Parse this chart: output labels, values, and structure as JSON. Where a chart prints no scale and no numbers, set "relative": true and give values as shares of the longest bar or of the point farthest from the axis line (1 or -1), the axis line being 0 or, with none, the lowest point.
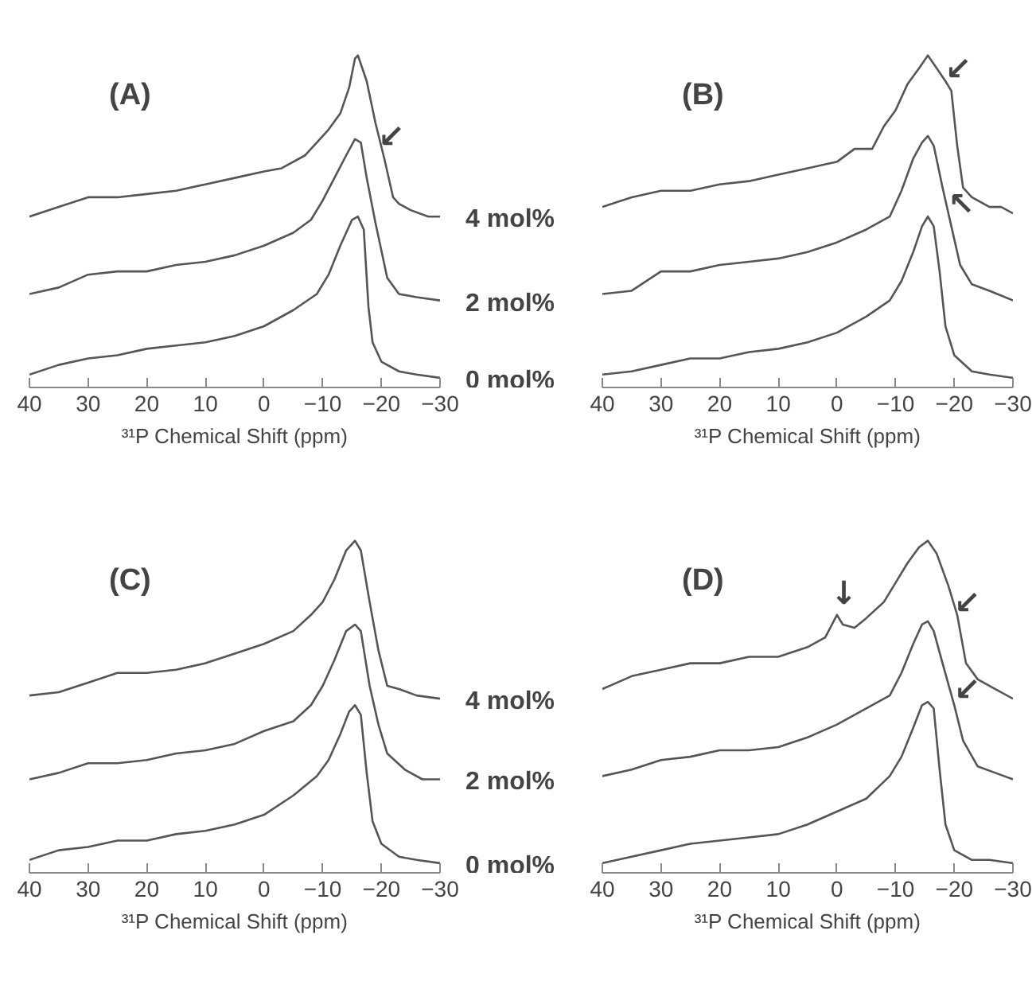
{
  "chart_data": [
    {
      "type": "line",
      "title": "(A)",
      "xlabel": "³¹P Chemical Shift (ppm)",
      "relative": true,
      "xlim": [
        40,
        -30
      ],
      "xticks": [
        40,
        30,
        20,
        10,
        0,
        -10,
        -20,
        -30
      ],
      "grid": false,
      "annotations": [
        {
          "text": "↙",
          "x": -20.5,
          "y": 0.68
        }
      ],
      "series": [
        {
          "name": "4 mol%",
          "color": "#555555",
          "x": [
            40,
            35,
            30,
            25,
            20,
            15,
            10,
            5,
            0,
            -3,
            -7,
            -9,
            -11,
            -13,
            -14.5,
            -15.5,
            -16,
            -17.5,
            -19,
            -20.5,
            -22,
            -23,
            -25,
            -28,
            -30
          ],
          "values": [
            0.5,
            0.53,
            0.56,
            0.56,
            0.57,
            0.58,
            0.6,
            0.62,
            0.64,
            0.65,
            0.69,
            0.73,
            0.77,
            0.82,
            0.9,
            0.99,
            1.0,
            0.92,
            0.79,
            0.68,
            0.56,
            0.54,
            0.52,
            0.5,
            0.5
          ]
        },
        {
          "name": "2 mol%",
          "color": "#555555",
          "x": [
            40,
            35,
            30,
            25,
            20,
            15,
            10,
            5,
            0,
            -5,
            -8,
            -10,
            -12,
            -14,
            -15.5,
            -16.5,
            -17.5,
            -19,
            -21,
            -23,
            -26,
            -30
          ],
          "values": [
            0.26,
            0.28,
            0.32,
            0.33,
            0.33,
            0.35,
            0.36,
            0.38,
            0.41,
            0.45,
            0.49,
            0.55,
            0.62,
            0.69,
            0.74,
            0.73,
            0.62,
            0.48,
            0.31,
            0.26,
            0.25,
            0.24
          ]
        },
        {
          "name": "0 mol%",
          "color": "#555555",
          "x": [
            40,
            35,
            30,
            25,
            20,
            15,
            10,
            5,
            0,
            -5,
            -9,
            -11,
            -13,
            -15,
            -16,
            -17,
            -17.8,
            -18.5,
            -20,
            -23,
            -26,
            -30
          ],
          "values": [
            0.01,
            0.04,
            0.06,
            0.07,
            0.09,
            0.1,
            0.11,
            0.13,
            0.16,
            0.21,
            0.26,
            0.32,
            0.41,
            0.49,
            0.5,
            0.46,
            0.22,
            0.11,
            0.05,
            0.02,
            0.01,
            0
          ]
        }
      ]
    },
    {
      "type": "line",
      "title": "(B)",
      "xlabel": "³¹P Chemical Shift (ppm)",
      "relative": true,
      "xlim": [
        40,
        -30
      ],
      "xticks": [
        40,
        30,
        20,
        10,
        0,
        -10,
        -20,
        -30
      ],
      "grid": false,
      "annotations": [
        {
          "text": "↙",
          "x": -19.5,
          "y": 0.89
        },
        {
          "text": "↖",
          "x": -20,
          "y": 0.47
        }
      ],
      "series": [
        {
          "color": "#555555",
          "x": [
            40,
            35,
            30,
            25,
            20,
            15,
            10,
            5,
            0,
            -3,
            -6,
            -8,
            -10,
            -12,
            -14,
            -15.5,
            -17,
            -18.5,
            -19.5,
            -20.5,
            -21.5,
            -23,
            -26,
            -28,
            -30
          ],
          "values": [
            0.53,
            0.56,
            0.58,
            0.58,
            0.6,
            0.61,
            0.63,
            0.65,
            0.67,
            0.71,
            0.71,
            0.78,
            0.83,
            0.91,
            0.96,
            1.0,
            0.96,
            0.92,
            0.89,
            0.72,
            0.59,
            0.56,
            0.53,
            0.53,
            0.51
          ]
        },
        {
          "color": "#555555",
          "x": [
            40,
            35,
            30,
            25,
            20,
            15,
            10,
            5,
            0,
            -5,
            -9,
            -11,
            -13,
            -14.5,
            -15.5,
            -16.5,
            -18,
            -19.5,
            -21,
            -23,
            -26,
            -30
          ],
          "values": [
            0.26,
            0.27,
            0.33,
            0.33,
            0.35,
            0.36,
            0.37,
            0.39,
            0.42,
            0.46,
            0.5,
            0.58,
            0.68,
            0.73,
            0.75,
            0.72,
            0.59,
            0.47,
            0.35,
            0.29,
            0.27,
            0.24
          ]
        },
        {
          "color": "#555555",
          "x": [
            40,
            35,
            30,
            25,
            20,
            15,
            10,
            5,
            0,
            -5,
            -9,
            -11,
            -13,
            -14.5,
            -15.5,
            -16.5,
            -17.5,
            -18.5,
            -20,
            -23,
            -26,
            -30
          ],
          "values": [
            0.01,
            0.02,
            0.04,
            0.06,
            0.06,
            0.08,
            0.09,
            0.11,
            0.14,
            0.19,
            0.24,
            0.3,
            0.39,
            0.47,
            0.5,
            0.47,
            0.33,
            0.16,
            0.07,
            0.02,
            0.01,
            0
          ]
        }
      ]
    },
    {
      "type": "line",
      "title": "(C)",
      "xlabel": "³¹P Chemical Shift (ppm)",
      "relative": true,
      "xlim": [
        40,
        -30
      ],
      "xticks": [
        40,
        30,
        20,
        10,
        0,
        -10,
        -20,
        -30
      ],
      "grid": false,
      "series": [
        {
          "name": "4 mol%",
          "color": "#555555",
          "x": [
            40,
            35,
            30,
            25,
            20,
            15,
            10,
            5,
            0,
            -5,
            -8,
            -10,
            -12,
            -14,
            -15.5,
            -16.5,
            -18,
            -19.5,
            -21,
            -23,
            -26,
            -30
          ],
          "values": [
            0.52,
            0.53,
            0.56,
            0.59,
            0.59,
            0.6,
            0.62,
            0.65,
            0.68,
            0.72,
            0.77,
            0.81,
            0.88,
            0.97,
            1.0,
            0.97,
            0.81,
            0.66,
            0.55,
            0.54,
            0.52,
            0.51
          ]
        },
        {
          "name": "2 mol%",
          "color": "#555555",
          "x": [
            40,
            35,
            30,
            25,
            20,
            15,
            10,
            5,
            0,
            -5,
            -8,
            -10,
            -12,
            -14,
            -15.5,
            -16.5,
            -18,
            -19.5,
            -21,
            -24,
            -27,
            -30
          ],
          "values": [
            0.26,
            0.28,
            0.31,
            0.31,
            0.32,
            0.34,
            0.35,
            0.37,
            0.41,
            0.44,
            0.49,
            0.55,
            0.63,
            0.72,
            0.74,
            0.72,
            0.55,
            0.43,
            0.34,
            0.29,
            0.26,
            0.26
          ]
        },
        {
          "name": "0 mol%",
          "color": "#555555",
          "x": [
            40,
            35,
            30,
            25,
            20,
            15,
            10,
            5,
            0,
            -5,
            -9,
            -11,
            -13,
            -14.5,
            -15.5,
            -16.5,
            -17.5,
            -18.5,
            -20,
            -23,
            -26,
            -30
          ],
          "values": [
            0.01,
            0.04,
            0.05,
            0.07,
            0.07,
            0.09,
            0.1,
            0.12,
            0.15,
            0.21,
            0.27,
            0.32,
            0.4,
            0.47,
            0.49,
            0.46,
            0.28,
            0.13,
            0.06,
            0.02,
            0.01,
            0
          ]
        }
      ]
    },
    {
      "type": "line",
      "title": "(D)",
      "xlabel": "³¹P Chemical Shift (ppm)",
      "relative": true,
      "xlim": [
        40,
        -30
      ],
      "xticks": [
        40,
        30,
        20,
        10,
        0,
        -10,
        -20,
        -30
      ],
      "grid": false,
      "annotations": [
        {
          "text": "↓",
          "x": 0,
          "y": 0.77
        },
        {
          "text": "↙",
          "x": -21,
          "y": 0.74
        },
        {
          "text": "↙",
          "x": -21,
          "y": 0.47
        }
      ],
      "series": [
        {
          "color": "#555555",
          "x": [
            40,
            35,
            30,
            25,
            20,
            15,
            10,
            5,
            2,
            0,
            -1,
            -3,
            -5,
            -8,
            -10,
            -12,
            -14,
            -15.5,
            -17,
            -19,
            -20.5,
            -22,
            -24,
            -27,
            -30
          ],
          "values": [
            0.54,
            0.58,
            0.6,
            0.62,
            0.62,
            0.64,
            0.64,
            0.67,
            0.7,
            0.77,
            0.74,
            0.73,
            0.76,
            0.81,
            0.87,
            0.93,
            0.98,
            1.0,
            0.96,
            0.86,
            0.77,
            0.62,
            0.57,
            0.54,
            0.51
          ]
        },
        {
          "color": "#555555",
          "x": [
            40,
            35,
            30,
            25,
            20,
            15,
            10,
            5,
            0,
            -5,
            -9,
            -11,
            -13,
            -14.5,
            -15.5,
            -16.5,
            -18,
            -20,
            -21.5,
            -24,
            -27,
            -30
          ],
          "values": [
            0.27,
            0.29,
            0.32,
            0.33,
            0.35,
            0.35,
            0.36,
            0.39,
            0.43,
            0.48,
            0.52,
            0.59,
            0.68,
            0.74,
            0.75,
            0.72,
            0.62,
            0.49,
            0.38,
            0.3,
            0.28,
            0.26
          ]
        },
        {
          "color": "#555555",
          "x": [
            40,
            35,
            30,
            25,
            20,
            15,
            10,
            5,
            0,
            -5,
            -9,
            -11,
            -13,
            -14.5,
            -15.5,
            -16.5,
            -17.5,
            -18.5,
            -20,
            -23,
            -26,
            -30
          ],
          "values": [
            0,
            0.02,
            0.04,
            0.06,
            0.07,
            0.08,
            0.09,
            0.12,
            0.16,
            0.2,
            0.27,
            0.33,
            0.42,
            0.49,
            0.5,
            0.48,
            0.29,
            0.12,
            0.04,
            0.01,
            0.01,
            0
          ]
        }
      ]
    }
  ]
}
